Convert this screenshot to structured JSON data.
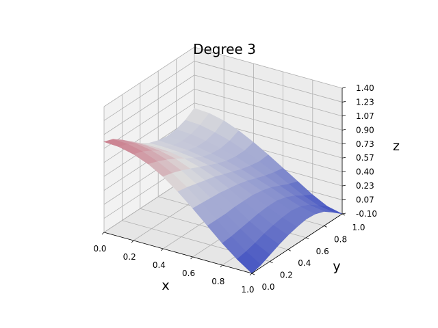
{
  "chart_data": {
    "type": "surface",
    "title": "Degree 3",
    "xlabel": "x",
    "ylabel": "y",
    "zlabel": "z",
    "xlim": [
      0.0,
      1.0
    ],
    "ylim": [
      0.0,
      1.0
    ],
    "zlim": [
      -0.1,
      1.4
    ],
    "x_ticks": [
      "0.0",
      "0.2",
      "0.4",
      "0.6",
      "0.8",
      "1.0"
    ],
    "y_ticks": [
      "0.0",
      "0.2",
      "0.4",
      "0.6",
      "0.8",
      "1.0"
    ],
    "z_ticks": [
      "-0.10",
      "0.07",
      "0.23",
      "0.40",
      "0.57",
      "0.73",
      "0.90",
      "1.07",
      "1.23",
      "1.40"
    ],
    "grid": true,
    "colormap": [
      "#3b4cc0",
      "#dddddd",
      "#b40426"
    ],
    "color_limits": [
      -0.1,
      1.4
    ],
    "x": [
      0.0,
      0.1,
      0.2,
      0.3,
      0.4,
      0.5,
      0.6,
      0.7,
      0.8,
      0.9,
      1.0
    ],
    "y": [
      0.0,
      0.1,
      0.2,
      0.3,
      0.4,
      0.5,
      0.6,
      0.7,
      0.8,
      0.9,
      1.0
    ],
    "z": [
      [
        0.98,
        0.94,
        0.86,
        0.77,
        0.68,
        0.61,
        0.57,
        0.55,
        0.56,
        0.6,
        0.67
      ],
      [
        0.97,
        0.93,
        0.86,
        0.77,
        0.68,
        0.61,
        0.56,
        0.54,
        0.55,
        0.59,
        0.66
      ],
      [
        0.93,
        0.89,
        0.83,
        0.75,
        0.67,
        0.6,
        0.55,
        0.52,
        0.52,
        0.55,
        0.62
      ],
      [
        0.86,
        0.82,
        0.77,
        0.71,
        0.64,
        0.58,
        0.52,
        0.49,
        0.48,
        0.5,
        0.55
      ],
      [
        0.76,
        0.73,
        0.69,
        0.64,
        0.59,
        0.54,
        0.49,
        0.45,
        0.43,
        0.43,
        0.46
      ],
      [
        0.63,
        0.61,
        0.58,
        0.55,
        0.52,
        0.48,
        0.44,
        0.4,
        0.37,
        0.35,
        0.36
      ],
      [
        0.48,
        0.47,
        0.46,
        0.45,
        0.43,
        0.41,
        0.38,
        0.34,
        0.3,
        0.27,
        0.25
      ],
      [
        0.32,
        0.32,
        0.32,
        0.33,
        0.33,
        0.33,
        0.31,
        0.28,
        0.23,
        0.18,
        0.14
      ],
      [
        0.16,
        0.17,
        0.19,
        0.21,
        0.23,
        0.24,
        0.24,
        0.21,
        0.16,
        0.09,
        0.03
      ],
      [
        0.02,
        0.04,
        0.07,
        0.11,
        0.14,
        0.16,
        0.17,
        0.15,
        0.1,
        0.02,
        -0.06
      ],
      [
        -0.1,
        -0.07,
        -0.02,
        0.03,
        0.07,
        0.1,
        0.12,
        0.11,
        0.07,
        -0.01,
        -0.1
      ]
    ]
  }
}
